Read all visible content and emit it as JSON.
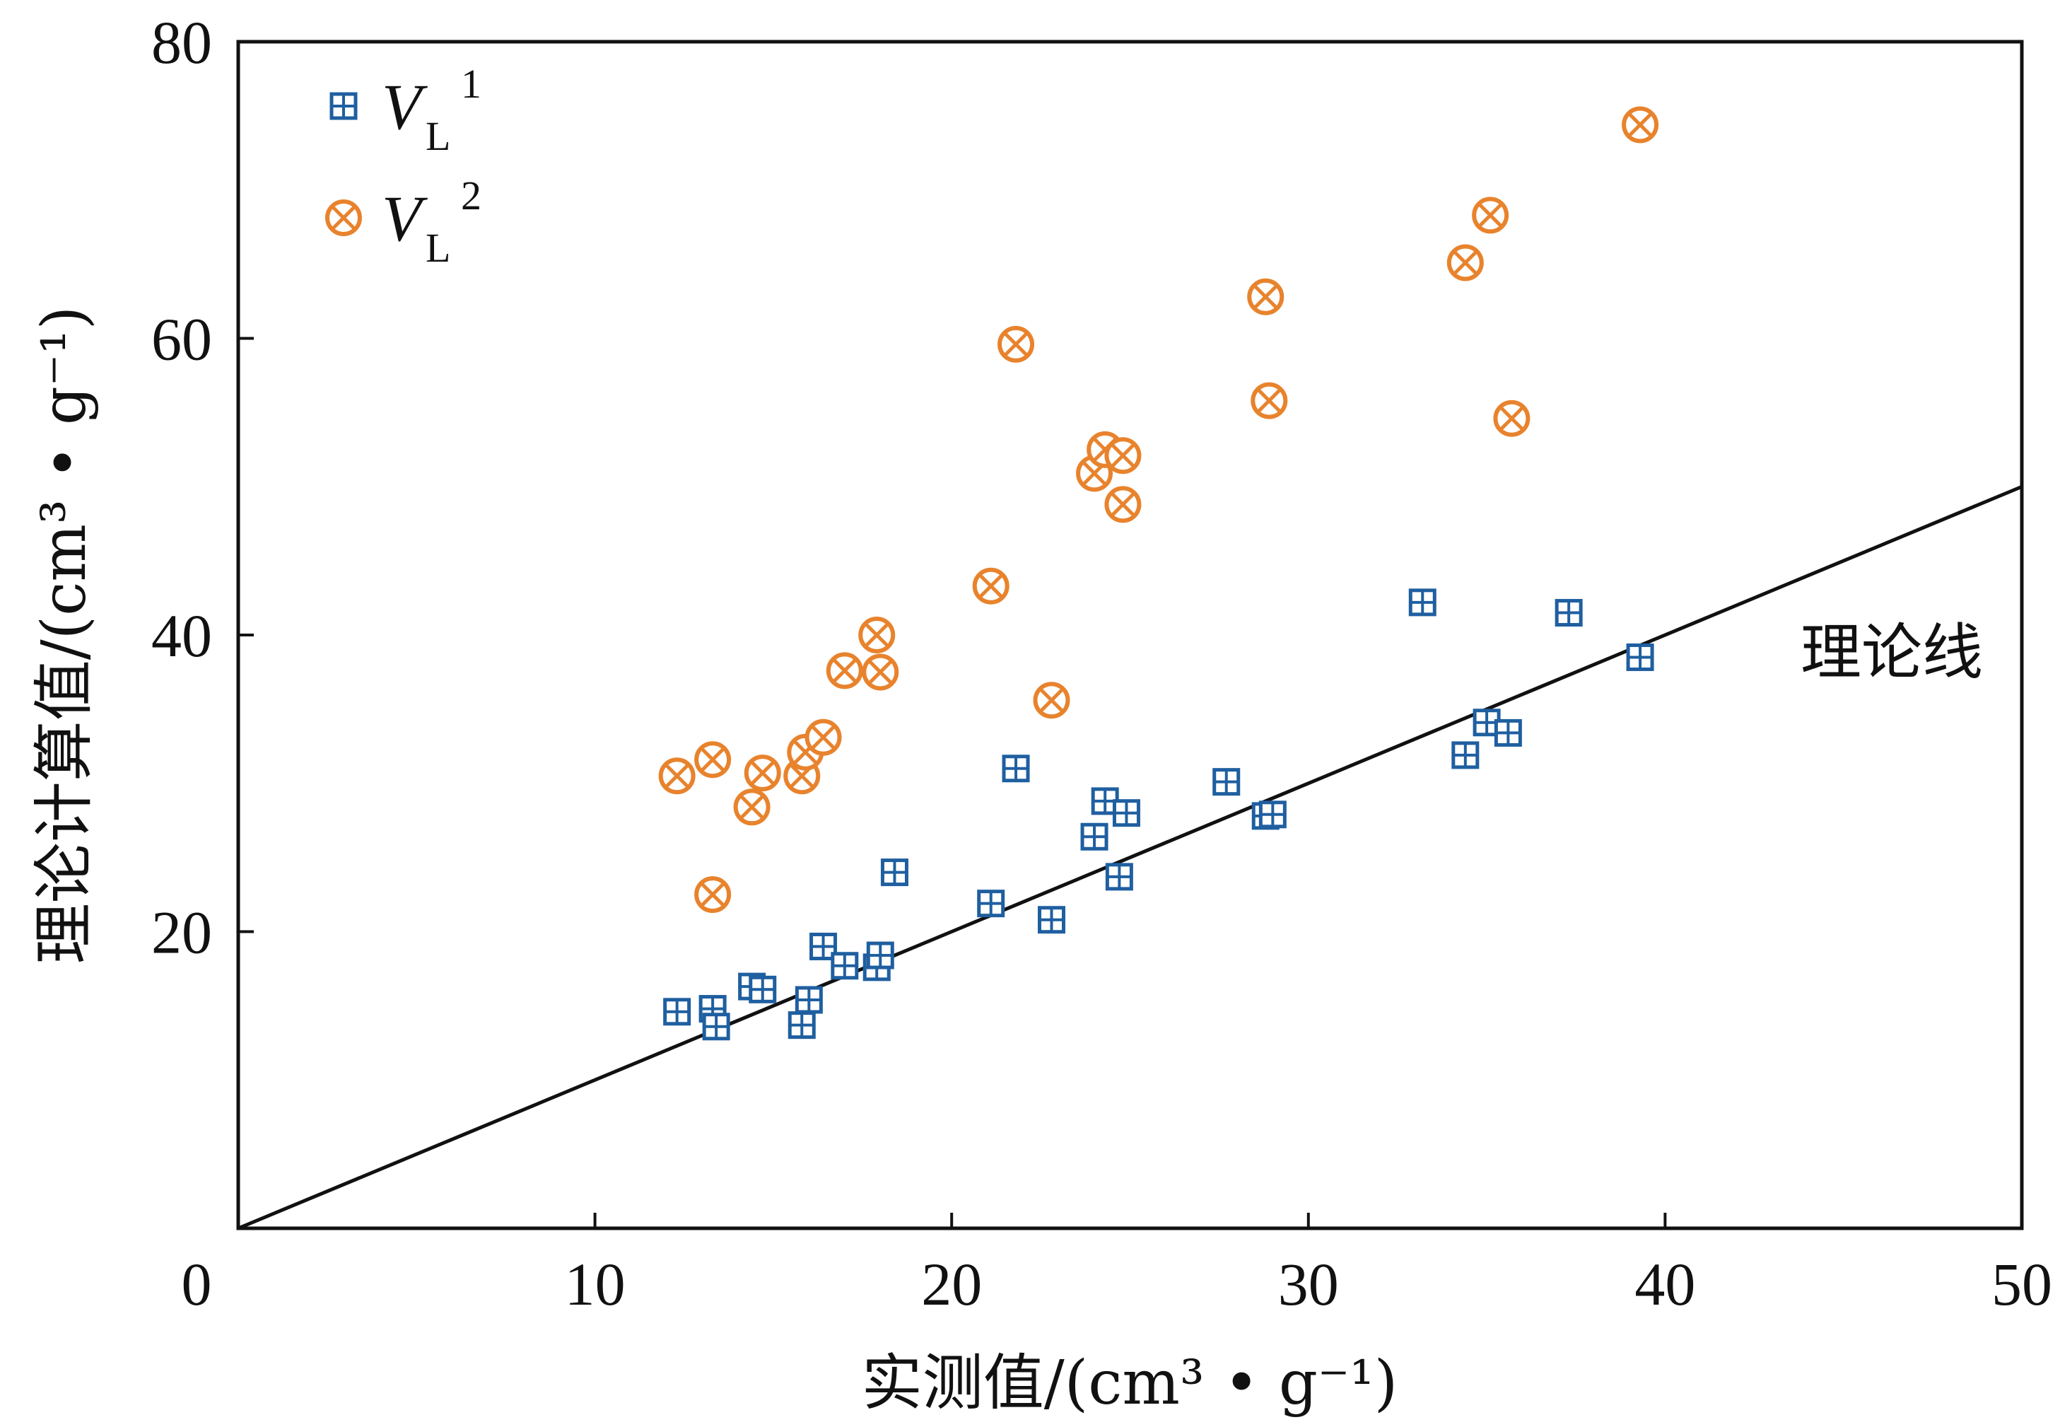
{
  "chart_data": {
    "type": "scatter",
    "title": "",
    "xlabel": "实测值/(cm³ • g⁻¹)",
    "ylabel": "理论计算值/(cm³ • g⁻¹)",
    "xlim": [
      0,
      50
    ],
    "ylim": [
      0,
      80
    ],
    "x_ticks": [
      "0",
      "10",
      "20",
      "30",
      "40",
      "50"
    ],
    "y_ticks": [
      "20",
      "40",
      "60",
      "80"
    ],
    "legend_position": "top-left",
    "grid": false,
    "series": [
      {
        "name": "V_L^1",
        "legend_main": "V",
        "legend_sub": "L",
        "legend_sup": "1",
        "marker": "boxed-plus",
        "color": "#1f5fa0",
        "points": [
          [
            12.3,
            14.6
          ],
          [
            13.3,
            14.8
          ],
          [
            13.4,
            13.6
          ],
          [
            14.4,
            16.3
          ],
          [
            14.7,
            16.1
          ],
          [
            15.8,
            13.7
          ],
          [
            16.0,
            15.4
          ],
          [
            16.4,
            19.0
          ],
          [
            17.0,
            17.7
          ],
          [
            17.9,
            17.6
          ],
          [
            18.0,
            18.4
          ],
          [
            18.4,
            24.0
          ],
          [
            21.1,
            21.9
          ],
          [
            21.8,
            31.0
          ],
          [
            22.8,
            20.8
          ],
          [
            24.0,
            26.4
          ],
          [
            24.3,
            28.8
          ],
          [
            24.7,
            23.7
          ],
          [
            24.9,
            28.0
          ],
          [
            27.7,
            30.1
          ],
          [
            28.8,
            27.8
          ],
          [
            29.0,
            27.9
          ],
          [
            33.2,
            42.2
          ],
          [
            34.4,
            31.9
          ],
          [
            35.0,
            34.1
          ],
          [
            35.6,
            33.4
          ],
          [
            37.3,
            41.5
          ],
          [
            39.3,
            38.5
          ]
        ]
      },
      {
        "name": "V_L^2",
        "legend_main": "V",
        "legend_sub": "L",
        "legend_sup": "2",
        "marker": "circled-x",
        "color": "#e8832d",
        "points": [
          [
            12.3,
            30.5
          ],
          [
            13.3,
            31.6
          ],
          [
            13.3,
            22.5
          ],
          [
            14.4,
            28.4
          ],
          [
            14.7,
            30.7
          ],
          [
            15.8,
            30.5
          ],
          [
            15.9,
            32.1
          ],
          [
            16.4,
            33.1
          ],
          [
            17.0,
            37.6
          ],
          [
            17.9,
            40.0
          ],
          [
            18.0,
            37.5
          ],
          [
            21.1,
            43.3
          ],
          [
            21.8,
            59.6
          ],
          [
            22.8,
            35.6
          ],
          [
            24.0,
            50.9
          ],
          [
            24.3,
            52.5
          ],
          [
            24.8,
            52.1
          ],
          [
            24.8,
            48.8
          ],
          [
            28.8,
            62.8
          ],
          [
            28.9,
            55.8
          ],
          [
            34.4,
            65.1
          ],
          [
            35.1,
            68.3
          ],
          [
            35.7,
            54.6
          ],
          [
            39.3,
            74.4
          ]
        ]
      }
    ],
    "reference_line": {
      "label": "理论线",
      "from": [
        0,
        0
      ],
      "to": [
        50,
        50
      ]
    }
  }
}
